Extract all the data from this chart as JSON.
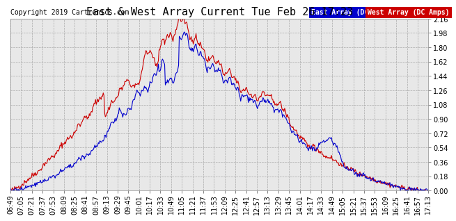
{
  "title": "East & West Array Current Tue Feb 26 17:23",
  "copyright": "Copyright 2019 Cartronics.com",
  "legend_east": "East Array (DC Amps)",
  "legend_west": "West Array (DC Amps)",
  "east_color": "#0000cc",
  "west_color": "#cc0000",
  "legend_east_bg": "#0000cc",
  "legend_west_bg": "#cc0000",
  "ylim": [
    0.0,
    2.16
  ],
  "yticks": [
    0.0,
    0.18,
    0.36,
    0.54,
    0.72,
    0.9,
    1.08,
    1.26,
    1.44,
    1.62,
    1.8,
    1.98,
    2.16
  ],
  "background_color": "#ffffff",
  "plot_bg_color": "#e8e8e8",
  "grid_color": "#aaaaaa",
  "title_fontsize": 11,
  "tick_fontsize": 7,
  "copyright_fontsize": 7,
  "line_width": 0.8
}
